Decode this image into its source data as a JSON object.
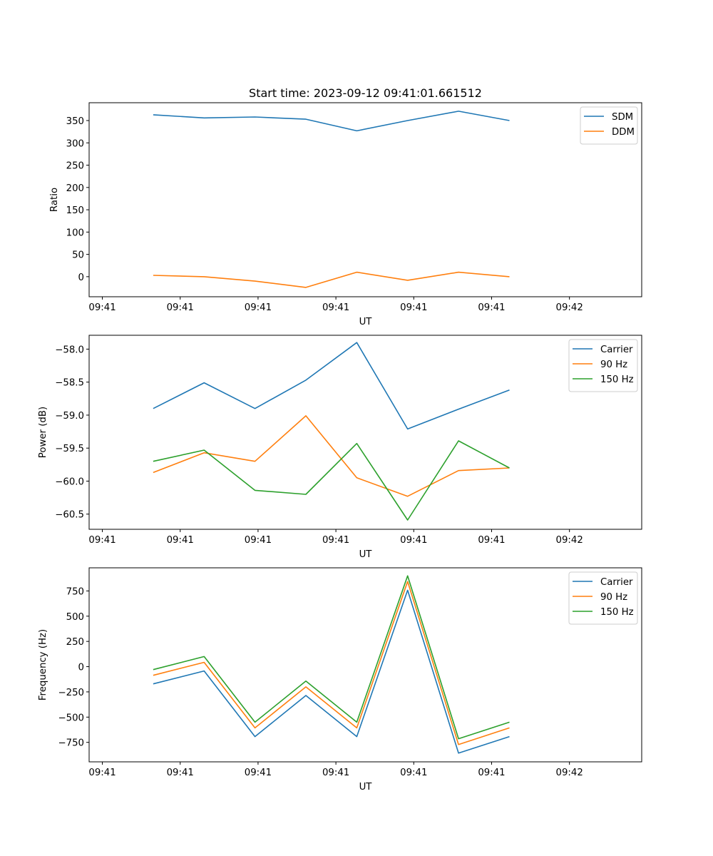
{
  "chart_data": [
    {
      "type": "line",
      "title": "Start time: 2023-09-12 09:41:01.661512",
      "xlabel": "UT",
      "ylabel": "Ratio",
      "xtick_labels": [
        "09:41",
        "09:41",
        "09:41",
        "09:41",
        "09:41",
        "09:41",
        "09:42"
      ],
      "yticks": [
        0,
        50,
        100,
        150,
        200,
        250,
        300,
        350
      ],
      "ytick_labels": [
        "0",
        "50",
        "100",
        "150",
        "200",
        "250",
        "300",
        "350"
      ],
      "ylim": [
        -45,
        390
      ],
      "x": [
        1,
        2,
        3,
        4,
        5,
        6,
        7,
        8
      ],
      "xlim": [
        -0.26,
        10.6
      ],
      "xticks": [
        0,
        1.53,
        3.06,
        4.59,
        6.12,
        7.65,
        9.18
      ],
      "grid": false,
      "legend": "top-right",
      "series": [
        {
          "name": "SDM",
          "color": "#1f77b4",
          "values": [
            363,
            356,
            358,
            353,
            327,
            350,
            371,
            350
          ]
        },
        {
          "name": "DDM",
          "color": "#ff7f0e",
          "values": [
            3,
            0,
            -10,
            -24,
            10,
            -8,
            10,
            0
          ]
        }
      ]
    },
    {
      "type": "line",
      "title": "",
      "xlabel": "UT",
      "ylabel": "Power (dB)",
      "xtick_labels": [
        "09:41",
        "09:41",
        "09:41",
        "09:41",
        "09:41",
        "09:41",
        "09:42"
      ],
      "yticks": [
        -60.5,
        -60.0,
        -59.5,
        -59.0,
        -58.5,
        -58.0
      ],
      "ytick_labels": [
        "−60.5",
        "−60.0",
        "−59.5",
        "−59.0",
        "−58.5",
        "−58.0"
      ],
      "ylim": [
        -60.73,
        -57.79
      ],
      "x": [
        1,
        2,
        3,
        4,
        5,
        6,
        7,
        8
      ],
      "xlim": [
        -0.26,
        10.6
      ],
      "xticks": [
        0,
        1.53,
        3.06,
        4.59,
        6.12,
        7.65,
        9.18
      ],
      "grid": false,
      "legend": "top-right",
      "series": [
        {
          "name": "Carrier",
          "color": "#1f77b4",
          "values": [
            -58.9,
            -58.51,
            -58.9,
            -58.47,
            -57.9,
            -59.21,
            -58.91,
            -58.62
          ]
        },
        {
          "name": "90 Hz",
          "color": "#ff7f0e",
          "values": [
            -59.87,
            -59.57,
            -59.7,
            -59.01,
            -59.95,
            -60.23,
            -59.84,
            -59.8
          ]
        },
        {
          "name": "150 Hz",
          "color": "#2ca02c",
          "values": [
            -59.7,
            -59.53,
            -60.14,
            -60.2,
            -59.43,
            -60.59,
            -59.39,
            -59.8
          ]
        }
      ]
    },
    {
      "type": "line",
      "title": "",
      "xlabel": "UT",
      "ylabel": "Frequency (Hz)",
      "xtick_labels": [
        "09:41",
        "09:41",
        "09:41",
        "09:41",
        "09:41",
        "09:41",
        "09:42"
      ],
      "yticks": [
        -750,
        -500,
        -250,
        0,
        250,
        500,
        750
      ],
      "ytick_labels": [
        "−750",
        "−500",
        "−250",
        "0",
        "250",
        "500",
        "750"
      ],
      "ylim": [
        -943,
        979
      ],
      "x": [
        1,
        2,
        3,
        4,
        5,
        6,
        7,
        8
      ],
      "xlim": [
        -0.26,
        10.6
      ],
      "xticks": [
        0,
        1.53,
        3.06,
        4.59,
        6.12,
        7.65,
        9.18
      ],
      "grid": false,
      "legend": "top-right",
      "series": [
        {
          "name": "Carrier",
          "color": "#1f77b4",
          "values": [
            -171,
            -43,
            -693,
            -286,
            -693,
            757,
            -857,
            -693
          ]
        },
        {
          "name": "90 Hz",
          "color": "#ff7f0e",
          "values": [
            -86,
            43,
            -607,
            -200,
            -607,
            843,
            -771,
            -607
          ]
        },
        {
          "name": "150 Hz",
          "color": "#2ca02c",
          "values": [
            -29,
            100,
            -550,
            -143,
            -550,
            900,
            -714,
            -550
          ]
        }
      ]
    }
  ]
}
